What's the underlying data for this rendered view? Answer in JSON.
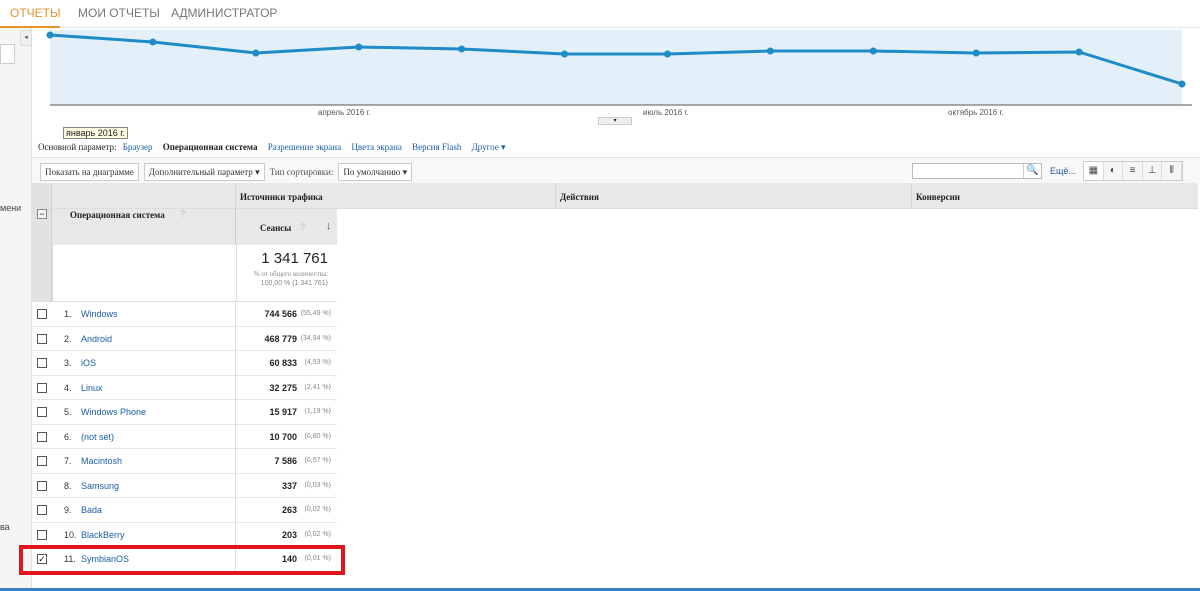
{
  "topnav": {
    "tabs": [
      {
        "label": "ОТЧЕТЫ",
        "active": true
      },
      {
        "label": "МОИ ОТЧЕТЫ"
      },
      {
        "label": "АДМИНИСТРАТОР"
      }
    ]
  },
  "sidebar": {
    "fragments": [
      "мени",
      "ва"
    ]
  },
  "chart_data": {
    "type": "area",
    "x_labels": [
      "апрель 2016 г.",
      "июль 2016 г.",
      "октябрь 2016 г."
    ],
    "tooltip": "январь 2016 г.",
    "series": [
      {
        "values": [
          70,
          63,
          52,
          58,
          56,
          51,
          51,
          54,
          54,
          52,
          53,
          21
        ]
      }
    ],
    "ylim": [
      0,
      75
    ],
    "color": "#1f8bc7",
    "fill": "#e3f0f9"
  },
  "params": {
    "label": "Основной параметр:",
    "items": [
      {
        "label": "Браузер"
      },
      {
        "label": "Операционная система",
        "active": true
      },
      {
        "label": "Разрешение экрана"
      },
      {
        "label": "Цвета экрана"
      },
      {
        "label": "Версия Flash"
      },
      {
        "label": "Другое ▾"
      }
    ]
  },
  "toolbar": {
    "show_chart": "Показать на диаграмме",
    "secondary": "Дополнительный параметр",
    "sort_label": "Тип сортировки:",
    "sort_value": "По умолчанию",
    "search_value": "",
    "more": "Ещё..."
  },
  "table": {
    "col_os": "Операционная система",
    "group_traffic": "Источники трафика",
    "group_actions": "Действия",
    "group_conversions": "Конверсии",
    "col_sessions": "Сеансы",
    "total": {
      "value": "1 341 761",
      "label": "% от общего количества:",
      "detail": "100,00 % (1 341 761)"
    },
    "rows": [
      {
        "n": "1.",
        "name": "Windows",
        "sessions": "744 566",
        "pct": "(55,49 %)",
        "checked": false
      },
      {
        "n": "2.",
        "name": "Android",
        "sessions": "468 779",
        "pct": "(34,94 %)",
        "checked": false
      },
      {
        "n": "3.",
        "name": "iOS",
        "sessions": "60 833",
        "pct": "(4,53 %)",
        "checked": false
      },
      {
        "n": "4.",
        "name": "Linux",
        "sessions": "32 275",
        "pct": "(2,41 %)",
        "checked": false
      },
      {
        "n": "5.",
        "name": "Windows Phone",
        "sessions": "15 917",
        "pct": "(1,19 %)",
        "checked": false
      },
      {
        "n": "6.",
        "name": "(not set)",
        "sessions": "10 700",
        "pct": "(0,80 %)",
        "checked": false
      },
      {
        "n": "7.",
        "name": "Macintosh",
        "sessions": "7 586",
        "pct": "(0,57 %)",
        "checked": false
      },
      {
        "n": "8.",
        "name": "Samsung",
        "sessions": "337",
        "pct": "(0,03 %)",
        "checked": false
      },
      {
        "n": "9.",
        "name": "Bada",
        "sessions": "263",
        "pct": "(0,02 %)",
        "checked": false
      },
      {
        "n": "10.",
        "name": "BlackBerry",
        "sessions": "203",
        "pct": "(0,02 %)",
        "checked": false
      },
      {
        "n": "11.",
        "name": "SymbianOS",
        "sessions": "140",
        "pct": "(0,01 %)",
        "checked": true
      }
    ]
  }
}
